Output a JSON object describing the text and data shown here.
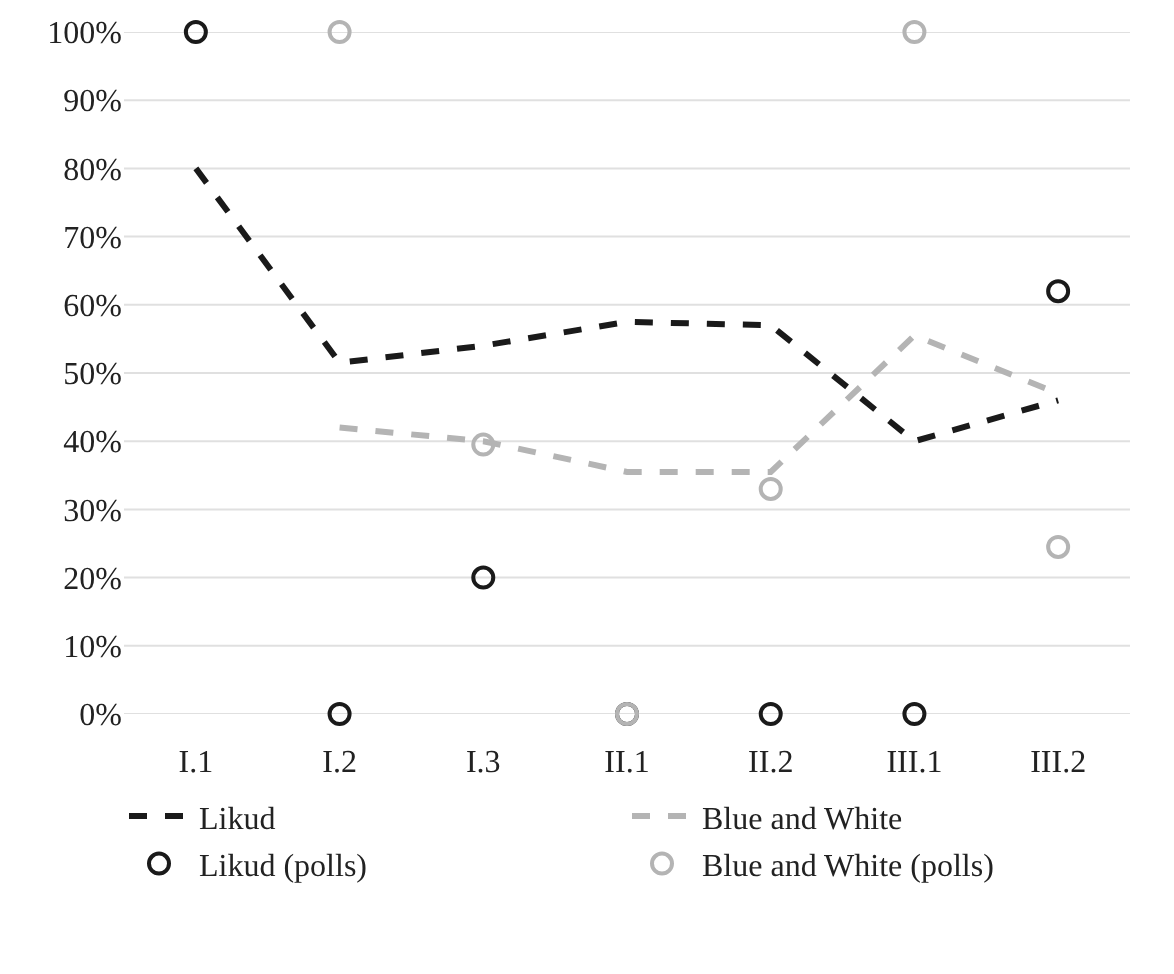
{
  "chart_data": {
    "type": "line",
    "categories": [
      "I.1",
      "I.2",
      "I.3",
      "II.1",
      "II.2",
      "III.1",
      "III.2"
    ],
    "series": [
      {
        "name": "Likud",
        "color": "#1a1a1a",
        "line_style": "dashed",
        "marker": "none",
        "values": [
          80,
          51.5,
          54,
          57.5,
          57,
          40,
          46
        ]
      },
      {
        "name": "Blue and White",
        "color": "#b4b4b4",
        "line_style": "dashed",
        "marker": "none",
        "values": [
          null,
          42,
          40,
          35.5,
          35.5,
          55.5,
          47
        ]
      },
      {
        "name": "Likud (polls)",
        "type": "scatter",
        "color": "#1a1a1a",
        "marker": "circle",
        "values": [
          100,
          0,
          20,
          0,
          0,
          0,
          62
        ]
      },
      {
        "name": "Blue and White (polls)",
        "type": "scatter",
        "color": "#b4b4b4",
        "marker": "circle",
        "values": [
          null,
          100,
          39.5,
          0,
          33,
          100,
          24.5
        ]
      }
    ],
    "ylim": [
      0,
      100
    ],
    "yticks": [
      {
        "value": 0,
        "label": "0%"
      },
      {
        "value": 10,
        "label": "10%"
      },
      {
        "value": 20,
        "label": "20%"
      },
      {
        "value": 30,
        "label": "30%"
      },
      {
        "value": 40,
        "label": "40%"
      },
      {
        "value": 50,
        "label": "50%"
      },
      {
        "value": 60,
        "label": "60%"
      },
      {
        "value": 70,
        "label": "70%"
      },
      {
        "value": 80,
        "label": "80%"
      },
      {
        "value": 90,
        "label": "90%"
      },
      {
        "value": 100,
        "label": "100%"
      }
    ],
    "grid": "y",
    "legend": "bottom"
  }
}
